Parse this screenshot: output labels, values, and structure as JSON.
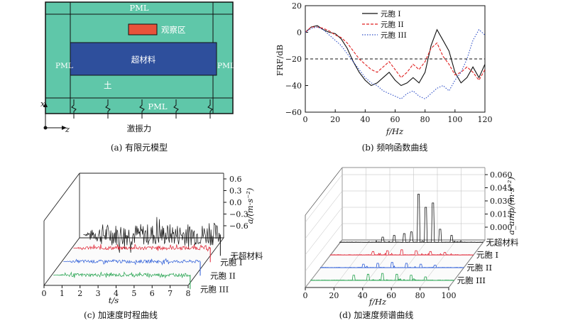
{
  "panel_a": {
    "top_label": "PML",
    "left_label": "PML",
    "right_label": "PML",
    "bottom_label": "PML",
    "observation_label": "观察区",
    "metamaterial_label": "超材料",
    "soil_label": "土",
    "axis_x_label": "x",
    "axis_z_label": "z",
    "excitation_label": "激振力",
    "caption": "(a) 有限元模型",
    "colors": {
      "soil": "#5fc7a9",
      "metamaterial": "#2e4f9c",
      "observation": "#e8523b"
    }
  },
  "panel_b": {
    "caption": "(b) 频响函数曲线",
    "chart_data": {
      "type": "line",
      "xlabel": "f/Hz",
      "ylabel": "FRF/dB",
      "xlim": [
        0,
        120
      ],
      "ylim": [
        -60,
        20
      ],
      "xticks": [
        "0",
        "20",
        "40",
        "60",
        "80",
        "100",
        "120"
      ],
      "yticks": [
        "20",
        "0",
        "−20",
        "−40",
        "−60"
      ],
      "reference_line_y": -20,
      "legend_position": "top-right",
      "series": [
        {
          "name": "元胞 I",
          "color": "#111111",
          "style": "solid",
          "x": [
            0,
            4,
            8,
            12,
            16,
            20,
            24,
            28,
            32,
            36,
            40,
            44,
            48,
            52,
            56,
            60,
            64,
            68,
            72,
            76,
            80,
            84,
            88,
            92,
            96,
            100,
            104,
            108,
            112,
            116,
            120
          ],
          "y": [
            0,
            4,
            5,
            2,
            0,
            -1,
            -5,
            -12,
            -22,
            -30,
            -36,
            -40,
            -38,
            -34,
            -30,
            -36,
            -40,
            -38,
            -34,
            -38,
            -30,
            -10,
            2,
            -6,
            -14,
            -30,
            -38,
            -34,
            -26,
            -34,
            -24
          ]
        },
        {
          "name": "元胞 II",
          "color": "#e02020",
          "style": "dashed",
          "x": [
            0,
            4,
            8,
            12,
            16,
            20,
            24,
            28,
            32,
            36,
            40,
            44,
            48,
            52,
            56,
            60,
            64,
            68,
            72,
            76,
            80,
            84,
            88,
            92,
            96,
            100,
            104,
            108,
            112,
            116,
            120
          ],
          "y": [
            0,
            4,
            4,
            3,
            1,
            -2,
            -4,
            -8,
            -14,
            -20,
            -24,
            -28,
            -30,
            -26,
            -22,
            -28,
            -34,
            -30,
            -24,
            -28,
            -22,
            -12,
            -8,
            -18,
            -24,
            -32,
            -30,
            -26,
            -30,
            -36,
            -28
          ]
        },
        {
          "name": "元胞 III",
          "color": "#3050c8",
          "style": "dotted",
          "x": [
            0,
            4,
            8,
            12,
            16,
            20,
            24,
            28,
            32,
            36,
            40,
            44,
            48,
            52,
            56,
            60,
            64,
            68,
            72,
            76,
            80,
            84,
            88,
            92,
            96,
            100,
            104,
            108,
            112,
            116,
            120
          ],
          "y": [
            0,
            3,
            4,
            2,
            -2,
            -6,
            -10,
            -16,
            -22,
            -28,
            -34,
            -38,
            -40,
            -44,
            -46,
            -48,
            -50,
            -46,
            -44,
            -48,
            -50,
            -46,
            -42,
            -40,
            -44,
            -36,
            -30,
            -20,
            -6,
            2,
            -2
          ]
        }
      ]
    }
  },
  "panel_c": {
    "caption": "(c) 加速度时程曲线",
    "chart_data": {
      "type": "line",
      "xlabel": "t/s",
      "ylabel": "a/(m·s⁻²)",
      "xlim": [
        0,
        8
      ],
      "zlim": [
        -0.6,
        0.6
      ],
      "xticks": [
        "0",
        "1",
        "2",
        "3",
        "4",
        "5",
        "6",
        "7",
        "8"
      ],
      "zticks": [
        "0.6",
        "0.3",
        "0.0",
        "−0.3",
        "−0.6"
      ],
      "series": [
        {
          "name": "无超材料",
          "color": "#111111",
          "amplitude": 0.35
        },
        {
          "name": "元胞 I",
          "color": "#e02030",
          "amplitude": 0.06
        },
        {
          "name": "元胞 II",
          "color": "#2a5bd7",
          "amplitude": 0.05
        },
        {
          "name": "元胞 III",
          "color": "#1fa04a",
          "amplitude": 0.05
        }
      ]
    }
  },
  "panel_d": {
    "caption": "(d) 加速度频谱曲线",
    "chart_data": {
      "type": "line",
      "xlabel": "f/Hz",
      "ylabel": "a_amp/(m·s⁻²)",
      "xlim": [
        0,
        100
      ],
      "zlim": [
        0,
        0.06
      ],
      "xticks": [
        "0",
        "20",
        "40",
        "60",
        "80",
        "100"
      ],
      "zticks": [
        "0.060",
        "0.045",
        "0.030",
        "0.015",
        "0.000"
      ],
      "series": [
        {
          "name": "无超材料",
          "color": "#111111",
          "peak_freqs": [
            30,
            38,
            45,
            50,
            55,
            60,
            65,
            70,
            78
          ],
          "peak_amps": [
            0.006,
            0.008,
            0.01,
            0.012,
            0.055,
            0.04,
            0.045,
            0.015,
            0.008
          ]
        },
        {
          "name": "元胞 I",
          "color": "#e02030",
          "peak_freqs": [
            30,
            40,
            50,
            60,
            70,
            80
          ],
          "peak_amps": [
            0.004,
            0.005,
            0.006,
            0.005,
            0.004,
            0.003
          ]
        },
        {
          "name": "元胞 II",
          "color": "#2a5bd7",
          "peak_freqs": [
            30,
            40,
            50,
            60,
            70,
            80
          ],
          "peak_amps": [
            0.004,
            0.005,
            0.006,
            0.005,
            0.004,
            0.003
          ]
        },
        {
          "name": "元胞 III",
          "color": "#1fa04a",
          "peak_freqs": [
            30,
            40,
            50,
            60,
            70,
            80
          ],
          "peak_amps": [
            0.006,
            0.007,
            0.008,
            0.007,
            0.006,
            0.004
          ]
        }
      ]
    }
  }
}
